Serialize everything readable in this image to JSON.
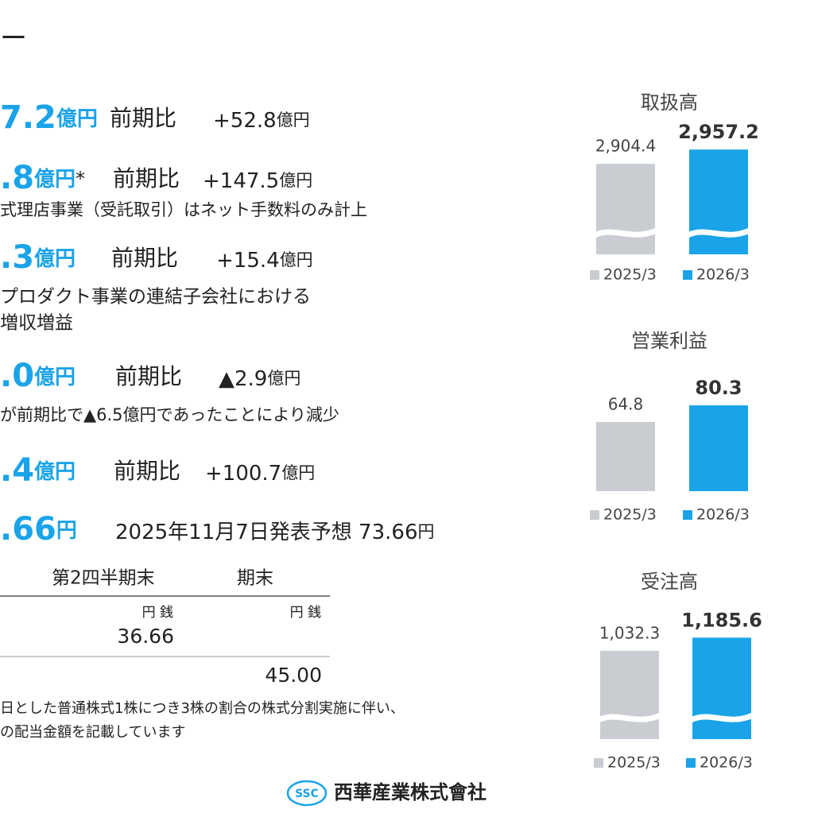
{
  "heading_fragment": "ー",
  "items": [
    {
      "value": "7.2",
      "unit": "億円",
      "label": "前期比",
      "change": "+52.8",
      "change_unit": "億円"
    },
    {
      "value": ".8",
      "unit": "億円",
      "mark": "*",
      "label": "前期比",
      "change": "+147.5",
      "change_unit": "億円",
      "notes": [
        "式理店事業（受託取引）はネット手数料のみ計上"
      ]
    },
    {
      "value": ".3",
      "unit": "億円",
      "label": "前期比",
      "change": "+15.4",
      "change_unit": "億円",
      "notes": [
        "プロダクト事業の連結子会社における",
        "増収増益"
      ]
    },
    {
      "value": ".0",
      "unit": "億円",
      "label": "前期比",
      "change": "▲2.9",
      "change_unit": "億円",
      "notes": [
        "が前期比で▲6.5億円であったことにより減少"
      ]
    },
    {
      "value": ".4",
      "unit": "億円",
      "label": "前期比",
      "change": "+100.7",
      "change_unit": "億円"
    },
    {
      "value": ".66",
      "unit": "円",
      "label": "2025年11月7日発表予想 73.66",
      "change_unit": "円"
    }
  ],
  "dividend_table": {
    "headers": [
      "第2四半期末",
      "期末"
    ],
    "units": [
      "円 銭",
      "円 銭"
    ],
    "values": [
      "36.66",
      "45.00"
    ]
  },
  "footnotes": [
    "日とした普通株式1株につき3株の割合の株式分割実施に伴い、",
    "の配当金額を記載しています"
  ],
  "logo": {
    "mark": "SSC",
    "name": "西華産業株式會社"
  },
  "chart_data": [
    {
      "type": "bar",
      "title": "取扱高",
      "axis_break": true,
      "ylim": [
        2570,
        2990
      ],
      "series": [
        {
          "name": "2025/3",
          "color": "#c9cdd1",
          "values": [
            2904.4
          ],
          "value_labels": [
            "2,904.4"
          ]
        },
        {
          "name": "2026/3",
          "color": "#1aa3e8",
          "values": [
            2957.2
          ],
          "value_labels": [
            "2,957.2"
          ]
        }
      ]
    },
    {
      "type": "bar",
      "title": "営業利益",
      "axis_break": false,
      "ylim": [
        0,
        90
      ],
      "series": [
        {
          "name": "2025/3",
          "color": "#c9cdd1",
          "values": [
            64.8
          ]
        },
        {
          "name": "2026/3",
          "color": "#1aa3e8",
          "values": [
            80.3
          ]
        }
      ]
    },
    {
      "type": "bar",
      "title": "受注高",
      "axis_break": true,
      "ylim": [
        0,
        1300
      ],
      "series": [
        {
          "name": "2025/3",
          "color": "#c9cdd1",
          "values": [
            1032.3
          ],
          "value_labels": [
            "1,032.3"
          ]
        },
        {
          "name": "2026/3",
          "color": "#1aa3e8",
          "values": [
            1185.6
          ],
          "value_labels": [
            "1,185.6"
          ]
        }
      ]
    }
  ]
}
